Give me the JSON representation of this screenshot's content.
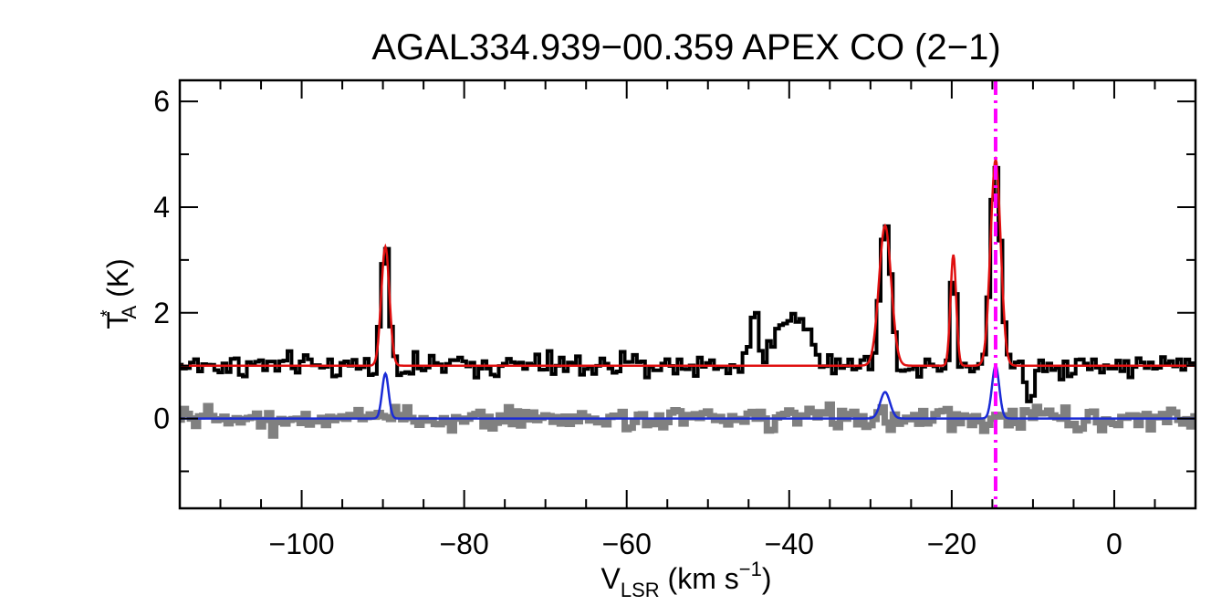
{
  "colors": {
    "axes": "#000000",
    "spectrum": "#000000",
    "fit": "#e01010",
    "residual": "#808080",
    "component_fit": "#1a2bd6",
    "marker": "#ff00ff"
  },
  "chart_data": {
    "type": "line",
    "title": "AGAL334.939−00.359  APEX CO (2−1)",
    "xlabel": {
      "main": "V",
      "sub": "LSR",
      "rest": " (km s",
      "sup": "−1",
      "end": ")"
    },
    "ylabel": {
      "main": "T",
      "sup": "*",
      "sub": "A",
      "rest": " (K)"
    },
    "xlim": [
      -115,
      10
    ],
    "ylim": [
      -1.7,
      6.4
    ],
    "x_ticks": [
      -100,
      -80,
      -60,
      -40,
      -20,
      0
    ],
    "x_tick_labels": [
      "−100",
      "−80",
      "−60",
      "−40",
      "−20",
      "0"
    ],
    "x_minor_step": 5,
    "y_ticks": [
      0,
      2,
      4,
      6
    ],
    "y_tick_labels": [
      "0",
      "2",
      "4",
      "6"
    ],
    "y_minor_ticks": [
      -1,
      1,
      3,
      5
    ],
    "channel_width_kms": 0.5,
    "marker_velocity": -14.6,
    "series": [
      {
        "name": "observed spectrum",
        "style": "step",
        "baseline": 1.0,
        "noise": 0.11,
        "gaussian_components": [
          {
            "center": -89.7,
            "amplitude": 2.3,
            "sigma": 0.5
          },
          {
            "center": -44.3,
            "amplitude": 1.15,
            "sigma": 0.45
          },
          {
            "center": -41.5,
            "amplitude": 0.35,
            "sigma": 0.8
          },
          {
            "center": -39.2,
            "amplitude": 1.0,
            "sigma": 1.6
          },
          {
            "center": -28.2,
            "amplitude": 2.65,
            "sigma": 0.7
          },
          {
            "center": -19.8,
            "amplitude": 2.1,
            "sigma": 0.32
          },
          {
            "center": -14.6,
            "amplitude": 3.95,
            "sigma": 0.6
          },
          {
            "center": -10.4,
            "amplitude": -0.75,
            "sigma": 0.35
          }
        ]
      },
      {
        "name": "gaussian fit",
        "style": "line",
        "baseline": 1.0,
        "gaussian_components": [
          {
            "center": -89.7,
            "amplitude": 2.25,
            "sigma": 0.5
          },
          {
            "center": -28.2,
            "amplitude": 2.65,
            "sigma": 0.75
          },
          {
            "center": -19.8,
            "amplitude": 2.1,
            "sigma": 0.35
          },
          {
            "center": -14.6,
            "amplitude": 3.9,
            "sigma": 0.62
          }
        ]
      },
      {
        "name": "residual",
        "style": "step",
        "baseline": 0.0,
        "noise": 0.1,
        "gaussian_components": []
      },
      {
        "name": "component fit",
        "style": "line",
        "baseline": 0.0,
        "gaussian_components": [
          {
            "center": -89.7,
            "amplitude": 0.85,
            "sigma": 0.4
          },
          {
            "center": -28.2,
            "amplitude": 0.5,
            "sigma": 0.6
          },
          {
            "center": -14.6,
            "amplitude": 1.0,
            "sigma": 0.45
          }
        ]
      }
    ]
  }
}
